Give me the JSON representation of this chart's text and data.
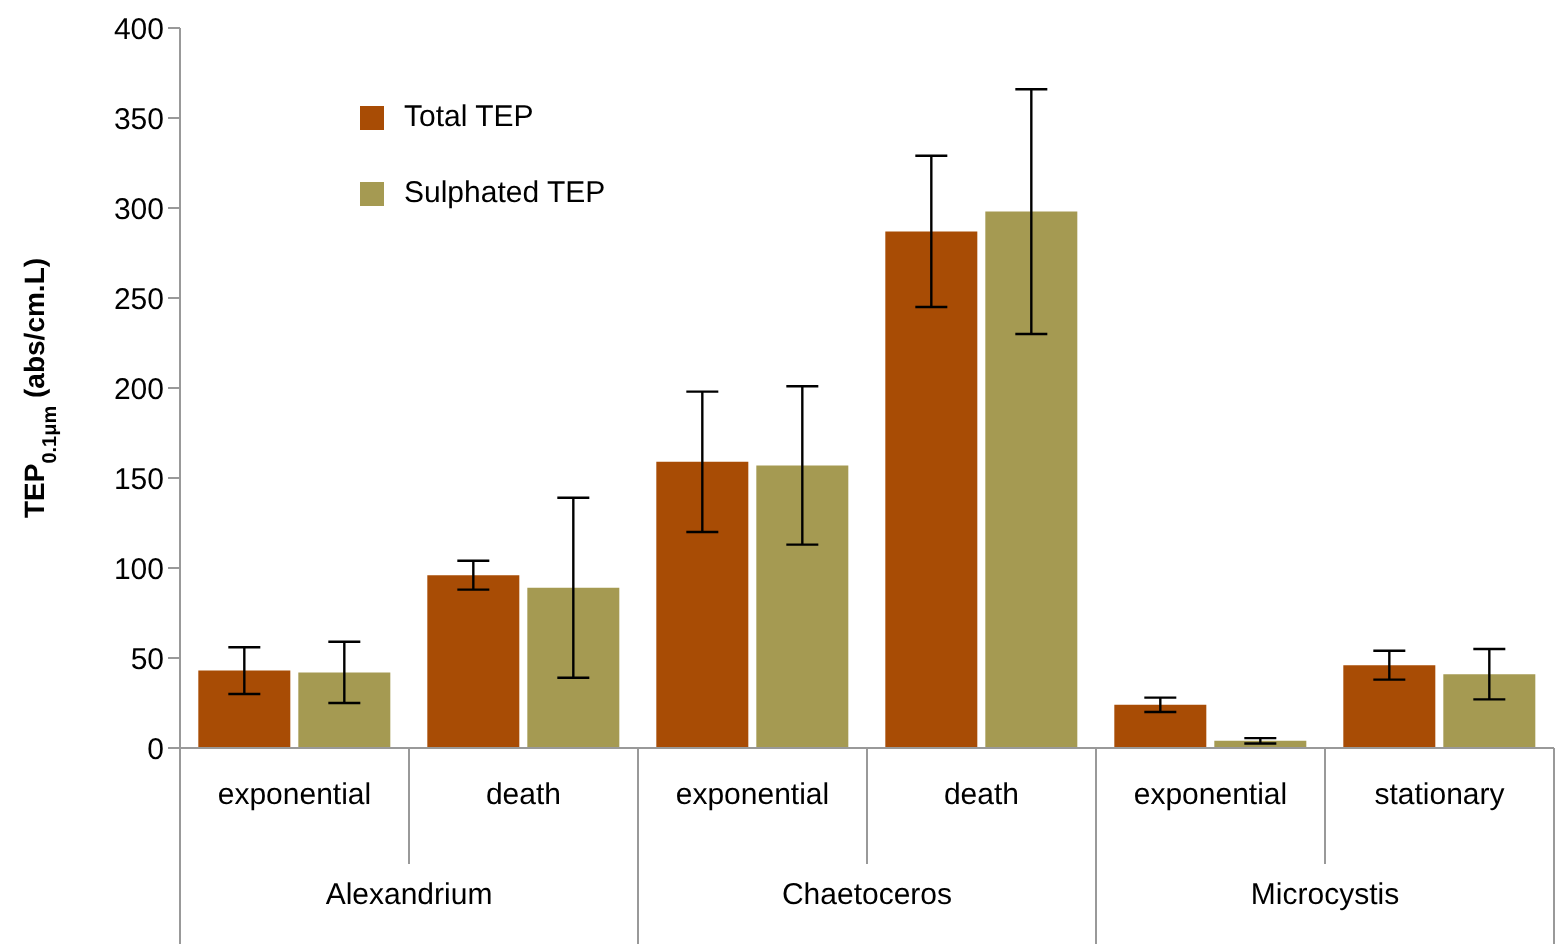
{
  "chart_data": {
    "type": "bar",
    "ylabel": "TEP$_{0.1μm}$ (abs/cm.L)",
    "categories": [
      "exponential",
      "death",
      "exponential",
      "death",
      "exponential",
      "stationary"
    ],
    "annotations": [
      "Alexandrium",
      "Chaetoceros",
      "Microcystis"
    ],
    "series": [
      {
        "name": "Total TEP",
        "color": "#a84c05",
        "values": [
          43,
          96,
          159,
          287,
          24,
          46
        ],
        "errors": [
          13,
          8,
          39,
          42,
          4,
          8
        ]
      },
      {
        "name": "Sulphated TEP",
        "color": "#a59a52",
        "values": [
          42,
          89,
          157,
          298,
          4,
          41
        ],
        "errors": [
          17,
          50,
          44,
          68,
          1.5,
          14
        ]
      }
    ],
    "ylim": [
      0,
      400
    ],
    "yticks": [
      0,
      50,
      100,
      150,
      200,
      250,
      300,
      350,
      400
    ],
    "grid": false,
    "legend": "top left"
  }
}
